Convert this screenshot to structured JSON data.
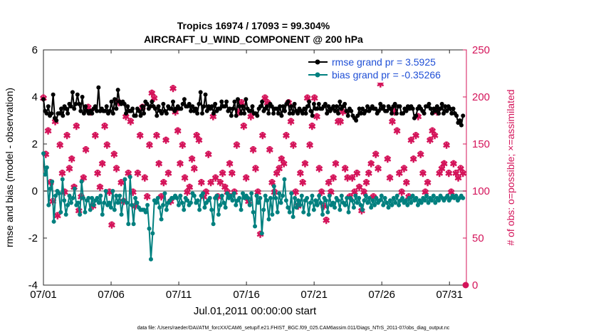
{
  "chart_data": {
    "type": "line",
    "title_line1": "Tropics 16974 / 17093 = 99.304%",
    "title_line2": "AIRCRAFT_U_WIND_COMPONENT @ 200 hPa",
    "xlabel": "Jul.01,2011 00:00:00 start",
    "ylabel_left": "rmse and bias (model - observation)",
    "ylabel_right": "# of obs: o=possible; ×=assimilated",
    "footer": "data file: /Users/raeder/DAI/ATM_forcXX/CAM6_setup/f.e21.FHIST_BGC.f09_025.CAM6assim.011/Diags_NTrS_2011-07/obs_diag_output.nc",
    "xlim": [
      0,
      31.25
    ],
    "ylim_left": [
      -4,
      6
    ],
    "ylim_right": [
      0,
      250
    ],
    "x_ticks": [
      0,
      5,
      10,
      15,
      20,
      25,
      30
    ],
    "x_tick_labels": [
      "07/01",
      "07/06",
      "07/11",
      "07/16",
      "07/21",
      "07/26",
      "07/31"
    ],
    "y_ticks_left": [
      "-4",
      "-2",
      "0",
      "2",
      "4",
      "6"
    ],
    "y_ticks_right": [
      "0",
      "50",
      "100",
      "150",
      "200",
      "250"
    ],
    "colors": {
      "rmse": "#000000",
      "bias": "#00807f",
      "obs": "#d4145a",
      "legend_text": "#1f4fd6",
      "zero_line": "#b0b0b0"
    },
    "series": [
      {
        "name": "rmse grand pr = 3.5925",
        "axis": "left",
        "values": [
          3.9,
          3.4,
          3.3,
          3.6,
          3.2,
          3.3,
          4.1,
          3.1,
          3.0,
          3.3,
          3.3,
          3.5,
          3.2,
          3.6,
          3.5,
          3.3,
          3.7,
          3.6,
          4.2,
          3.5,
          3.7,
          4.1,
          3.7,
          3.4,
          4.0,
          3.3,
          3.6,
          3.4,
          3.3,
          3.4,
          3.3,
          3.5,
          3.6,
          3.4,
          4.4,
          3.4,
          3.5,
          3.4,
          3.4,
          3.6,
          3.3,
          3.4,
          3.8,
          3.3,
          3.9,
          3.5,
          4.3,
          3.8,
          3.7,
          3.8,
          3.7,
          3.3,
          3.6,
          3.4,
          3.4,
          3.5,
          3.2,
          3.2,
          3.5,
          3.4,
          3.2,
          3.6,
          3.3,
          3.8,
          3.7,
          3.5,
          3.6,
          3.8,
          3.6,
          3.5,
          3.2,
          3.6,
          3.4,
          3.3,
          3.7,
          3.4,
          3.3,
          3.6,
          3.5,
          3.5,
          3.8,
          3.4,
          3.5,
          3.6,
          3.5,
          3.5,
          3.7,
          3.9,
          3.6,
          3.6,
          3.7,
          3.4,
          3.6,
          3.4,
          3.5,
          3.3,
          3.7,
          4.2,
          3.3,
          3.6,
          4.1,
          3.4,
          3.6,
          3.5,
          3.6,
          3.3,
          3.7,
          3.4,
          3.5,
          3.5,
          3.8,
          3.6,
          3.6,
          3.8,
          3.4,
          3.5,
          3.2,
          3.5,
          3.8,
          3.2,
          3.9,
          3.6,
          3.3,
          3.6,
          3.3,
          3.9,
          3.5,
          3.4,
          3.4,
          3.6,
          3.3,
          3.3,
          3.2,
          3.5,
          3.6,
          3.8,
          3.4,
          3.5,
          3.6,
          3.3,
          3.7,
          3.6,
          3.3,
          3.5,
          3.5,
          3.3,
          3.6,
          3.2,
          3.6,
          3.4,
          3.7,
          3.8,
          3.3,
          3.6,
          3.3,
          3.7,
          3.4,
          3.3,
          3.5,
          3.4,
          3.3,
          3.5,
          3.3,
          3.6,
          3.8,
          3.4,
          3.2,
          3.7,
          3.5,
          3.5,
          3.7,
          3.5,
          3.5,
          3.6,
          3.7,
          3.3,
          3.6,
          3.4,
          3.5,
          3.6,
          3.4,
          3.6,
          3.3,
          3.8,
          3.5,
          3.6,
          3.7,
          3.4,
          3.2,
          3.5,
          3.4,
          3.2,
          3.1,
          3.0,
          3.2,
          3.5,
          3.3,
          3.5,
          3.3,
          3.4,
          3.6,
          3.4,
          3.5,
          3.6,
          3.5,
          3.5,
          3.3,
          3.4,
          3.7,
          3.5,
          3.6,
          3.4,
          3.4,
          3.6,
          3.5,
          3.3,
          3.6,
          3.7,
          3.3,
          3.6,
          3.6,
          3.3,
          3.3,
          3.5,
          3.4,
          3.6,
          3.5,
          3.6,
          3.5,
          3.1,
          3.2,
          3.5,
          3.6,
          3.5,
          3.4,
          3.3,
          3.6,
          3.6,
          3.7,
          3.5,
          3.3,
          3.5,
          3.4,
          3.6,
          3.3,
          3.5,
          3.7,
          3.3,
          3.6,
          3.4,
          3.6,
          3.5,
          3.3,
          3.5,
          3.3,
          3.2,
          2.9,
          3.0,
          2.8,
          3.2
        ]
      },
      {
        "name": "bias grand pr = -0.35266",
        "axis": "left",
        "values": [
          1.6,
          0.7,
          1.0,
          -0.6,
          0.1,
          0.4,
          -1.3,
          -0.2,
          0.0,
          -0.1,
          -0.9,
          0.5,
          -0.4,
          -1.0,
          -0.6,
          -0.2,
          -0.5,
          -0.3,
          0.1,
          -0.6,
          -0.5,
          -1.0,
          0.4,
          -0.3,
          -0.9,
          -0.4,
          -0.3,
          -0.8,
          -0.3,
          -0.6,
          -0.4,
          -0.3,
          -0.5,
          -0.2,
          -1.0,
          -0.5,
          0.0,
          -0.6,
          -0.5,
          -0.7,
          0.0,
          -0.8,
          -0.2,
          -0.5,
          -0.2,
          -1.0,
          -0.4,
          0.5,
          -0.5,
          -1.4,
          0.6,
          -0.6,
          -1.4,
          -0.3,
          -0.5,
          -0.7,
          -0.8,
          -0.8,
          -0.8,
          -0.9,
          -0.6,
          -1.6,
          -2.9,
          -1.8,
          -0.4,
          -0.5,
          -0.3,
          -0.7,
          -1.2,
          -0.6,
          -0.1,
          -0.8,
          -0.5,
          -0.4,
          -0.3,
          -0.3,
          -0.2,
          -0.3,
          -0.6,
          -0.2,
          -0.5,
          -0.8,
          -0.3,
          -0.4,
          -0.6,
          -0.5,
          -0.1,
          -0.2,
          -0.5,
          -0.4,
          -0.8,
          -0.2,
          -0.1,
          -0.7,
          -0.5,
          -0.4,
          -0.3,
          -0.8,
          -1.4,
          -0.3,
          -0.2,
          -1.0,
          -0.6,
          -0.2,
          -0.5,
          -0.7,
          -0.1,
          -0.3,
          -0.2,
          -0.4,
          -0.1,
          -0.6,
          -0.4,
          -0.3,
          -0.8,
          -0.1,
          -0.3,
          -0.2,
          -0.3,
          -0.6,
          -0.1,
          -0.9,
          -1.5,
          -0.2,
          -0.5,
          -0.3,
          -1.8,
          -0.8,
          -0.2,
          -0.4,
          -1.2,
          -0.3,
          -1.0,
          0.2,
          -0.3,
          -0.9,
          -0.1,
          -0.5,
          -0.2,
          0.5,
          -0.4,
          -0.7,
          -0.9,
          -0.1,
          -1.1,
          -0.3,
          -0.7,
          -0.4,
          -0.6,
          -0.2,
          -0.9,
          -0.4,
          -0.3,
          -1.0,
          -0.5,
          -0.2,
          -0.8,
          -0.4,
          -0.6,
          -0.2,
          -0.5,
          -1.0,
          -0.3,
          -0.4,
          -0.9,
          -0.2,
          -0.6,
          -0.5,
          -0.7,
          -0.3,
          -0.4,
          -0.8,
          -0.2,
          -0.5,
          -0.6,
          -0.3,
          -0.9,
          -0.3,
          -0.4,
          -0.7,
          -0.2,
          -0.5,
          -0.3,
          -0.6,
          -0.8,
          -0.4,
          -0.2,
          -0.5,
          -0.3,
          -0.7,
          -0.4,
          -0.6,
          -0.3,
          -0.5,
          -0.4,
          -0.2,
          -0.6,
          -0.3,
          -0.5,
          -0.7,
          -0.4,
          -0.6,
          -0.3,
          -0.5,
          -0.2,
          -0.6,
          -0.4,
          -0.3,
          -0.5,
          -0.4,
          -0.6,
          -0.3,
          -0.5,
          -0.2,
          -0.4,
          -0.3,
          -0.6,
          -0.4,
          -0.5,
          -0.3,
          -0.4,
          -0.2,
          -0.5,
          -0.3,
          -0.4,
          -0.2,
          -0.5,
          -0.3,
          -0.4,
          -0.2,
          -0.3,
          -0.4,
          -0.3,
          -0.2,
          -0.4,
          -0.3,
          -0.2,
          -0.3,
          -0.2,
          -0.4,
          -0.3,
          -0.2,
          -0.3
        ]
      },
      {
        "name": "# obs possible",
        "axis": "right",
        "values": [
          200,
          140,
          165,
          110,
          90,
          175,
          75,
          150,
          120,
          100,
          160,
          125,
          135,
          105,
          170,
          80,
          95,
          115,
          145,
          190,
          185,
          85,
          160,
          120,
          105,
          130,
          170,
          150,
          100,
          65,
          140,
          125,
          195,
          110,
          90,
          180,
          120,
          175,
          100,
          85,
          120,
          160,
          190,
          115,
          95,
          150,
          205,
          200,
          160,
          130,
          95,
          110,
          155,
          120,
          90,
          210,
          185,
          165,
          130,
          150,
          115,
          100,
          105,
          135,
          125,
          160,
          155,
          110,
          95,
          100,
          140,
          110,
          180,
          115,
          95,
          110,
          120,
          105,
          100,
          130,
          120,
          100,
          150,
          185,
          195,
          170,
          115,
          90,
          180,
          145,
          125,
          100,
          55,
          160,
          200,
          195,
          145,
          110,
          100,
          120,
          125,
          135,
          130,
          160,
          195,
          175,
          150,
          100,
          85,
          120,
          110,
          130,
          200,
          150,
          170,
          200,
          180,
          125,
          100,
          85,
          70,
          110,
          100,
          115,
          130,
          175,
          175,
          185,
          125,
          115,
          95,
          115,
          100,
          120,
          105,
          80,
          100,
          110,
          120,
          130,
          95,
          140,
          125,
          215,
          225,
          230,
          135,
          115,
          175,
          185,
          165,
          120,
          100,
          125,
          110,
          95,
          155,
          135,
          160,
          180,
          140,
          120,
          100,
          110,
          155,
          165,
          160,
          185,
          120,
          125,
          130,
          150,
          120,
          100,
          130,
          120,
          115,
          125,
          120
        ]
      },
      {
        "name": "# obs assimilated",
        "axis": "right",
        "values": [
          199,
          139,
          164,
          109,
          89,
          174,
          74,
          149,
          119,
          99,
          159,
          124,
          134,
          104,
          169,
          79,
          94,
          114,
          144,
          189,
          184,
          84,
          159,
          119,
          104,
          129,
          169,
          149,
          99,
          64,
          139,
          124,
          194,
          109,
          89,
          179,
          119,
          174,
          99,
          84,
          119,
          159,
          189,
          114,
          94,
          149,
          204,
          199,
          159,
          129,
          94,
          109,
          154,
          119,
          89,
          209,
          184,
          164,
          129,
          149,
          114,
          99,
          104,
          134,
          124,
          159,
          154,
          109,
          94,
          99,
          139,
          109,
          179,
          114,
          94,
          109,
          119,
          104,
          99,
          129,
          119,
          99,
          149,
          184,
          194,
          169,
          114,
          89,
          179,
          144,
          124,
          99,
          54,
          159,
          199,
          194,
          144,
          109,
          99,
          119,
          124,
          134,
          129,
          159,
          194,
          174,
          149,
          99,
          84,
          119,
          109,
          129,
          199,
          149,
          169,
          199,
          179,
          124,
          99,
          84,
          69,
          109,
          99,
          114,
          129,
          174,
          174,
          184,
          124,
          114,
          94,
          114,
          99,
          119,
          104,
          79,
          99,
          109,
          119,
          129,
          94,
          139,
          124,
          214,
          224,
          229,
          134,
          114,
          174,
          184,
          164,
          119,
          99,
          124,
          109,
          94,
          154,
          134,
          159,
          179,
          139,
          119,
          99,
          109,
          154,
          164,
          159,
          184,
          119,
          124,
          129,
          149,
          119,
          99,
          129,
          119,
          114,
          124,
          119
        ]
      }
    ],
    "legend": [
      "rmse grand pr = 3.5925",
      "bias grand pr = -0.35266"
    ],
    "legend_position": "top-right",
    "obs_final_point": 0
  }
}
